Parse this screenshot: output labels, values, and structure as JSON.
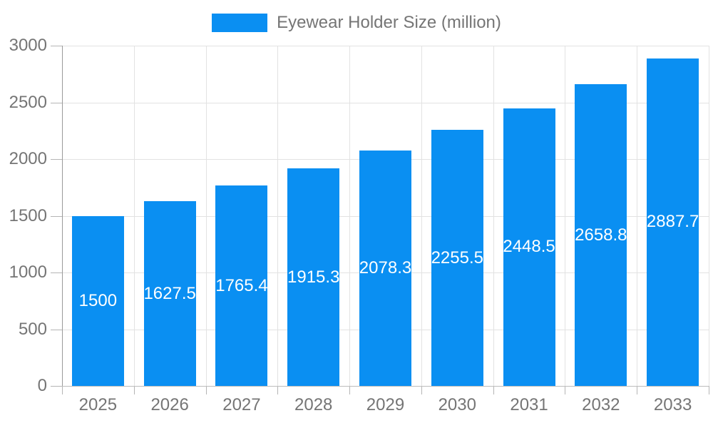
{
  "legend": {
    "label": "Eyewear Holder Size (million)"
  },
  "chart_data": {
    "type": "bar",
    "title": "Eyewear Holder Size (million)",
    "categories": [
      "2025",
      "2026",
      "2027",
      "2028",
      "2029",
      "2030",
      "2031",
      "2032",
      "2033"
    ],
    "values": [
      1500,
      1627.5,
      1765.4,
      1915.3,
      2078.3,
      2255.5,
      2448.5,
      2658.8,
      2887.7
    ],
    "value_labels": [
      "1500",
      "1627.5",
      "1765.4",
      "1915.3",
      "2078.3",
      "2255.5",
      "2448.5",
      "2658.8",
      "2887.7"
    ],
    "series": [
      {
        "name": "Eyewear Holder Size (million)",
        "values": [
          1500,
          1627.5,
          1765.4,
          1915.3,
          2078.3,
          2255.5,
          2448.5,
          2658.8,
          2887.7
        ]
      }
    ],
    "xlabel": "",
    "ylabel": "",
    "ylim": [
      0,
      3000
    ],
    "yticks": [
      0,
      500,
      1000,
      1500,
      2000,
      2500,
      3000
    ],
    "grid": true,
    "legend_position": "top",
    "bar_color": "#0A8FF2",
    "value_label_color": "#ffffff",
    "axis_text_color": "#757575",
    "grid_color": "#e2e2e2"
  }
}
